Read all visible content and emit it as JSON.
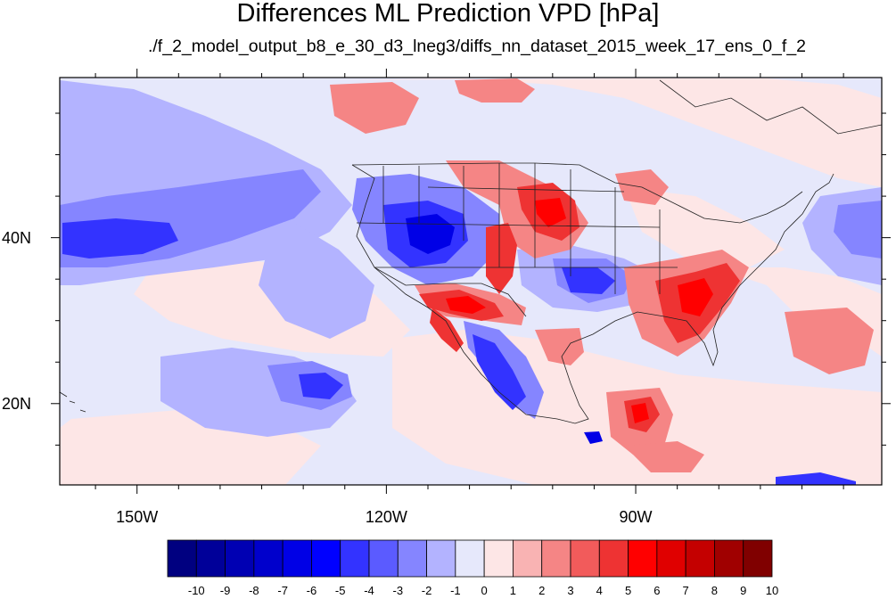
{
  "title": "Differences ML Prediction VPD [hPa]",
  "subtitle": "./f_2_model_output_b8_e_30_d3_lneg3/diffs_nn_dataset_2015_week_17_ens_0_f_2",
  "map": {
    "lon_ticks": [
      {
        "label": "150W",
        "lon": -150
      },
      {
        "label": "120W",
        "lon": -120
      },
      {
        "label": "90W",
        "lon": -90
      }
    ],
    "lat_ticks": [
      {
        "label": "40N",
        "lat": 40
      },
      {
        "label": "20N",
        "lat": 20
      }
    ],
    "lon_range": [
      -159.3,
      -60.4
    ],
    "lat_range": [
      10.2,
      59.3
    ],
    "background_color": "#e6e8fb"
  },
  "colorbar": {
    "labels": [
      "-10",
      "-9",
      "-8",
      "-7",
      "-6",
      "-5",
      "-4",
      "-3",
      "-2",
      "-1",
      "0",
      "1",
      "2",
      "3",
      "4",
      "5",
      "6",
      "7",
      "8",
      "9",
      "10"
    ],
    "colors": [
      "#000080",
      "#000099",
      "#0000b3",
      "#0000cc",
      "#0000e6",
      "#0000ff",
      "#3333ff",
      "#5b5bff",
      "#8585ff",
      "#b3b3ff",
      "#e6e8fb",
      "#fde6e6",
      "#f9b3b3",
      "#f58585",
      "#f25b5b",
      "#ee3333",
      "#ff0000",
      "#e00000",
      "#c40000",
      "#a00000",
      "#800000"
    ]
  }
}
